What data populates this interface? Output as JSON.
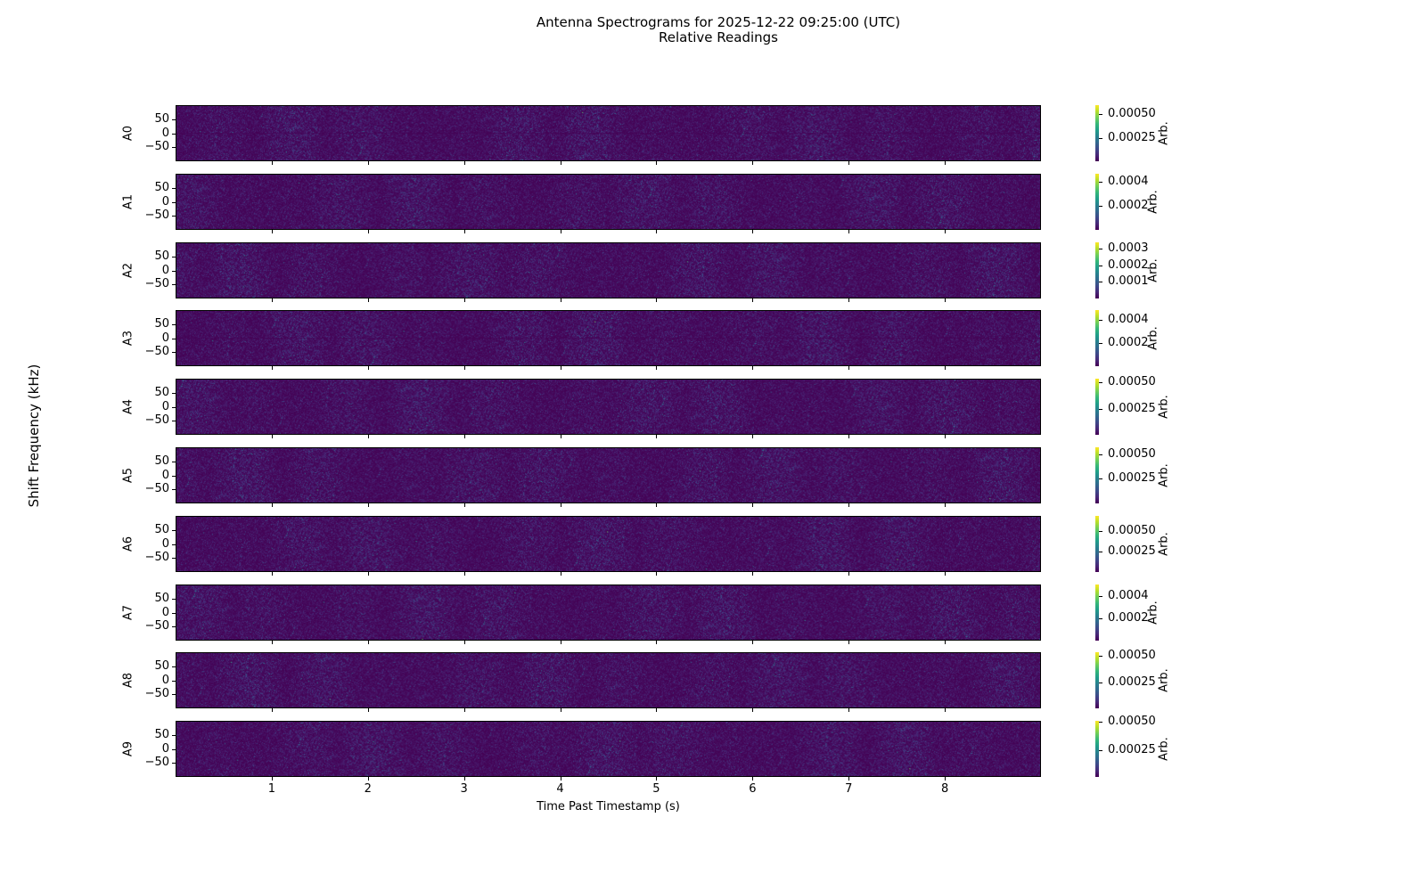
{
  "chart_data": {
    "type": "heatmap",
    "title": "Antenna Spectrograms for 2025-12-22 09:25:00 (UTC)",
    "subtitle": "Relative Readings",
    "xlabel": "Time Past Timestamp (s)",
    "ylabel": "Shift Frequency (kHz)",
    "xlim": [
      0,
      9
    ],
    "ylim": [
      -100,
      100
    ],
    "x_ticks": [
      1,
      2,
      3,
      4,
      5,
      6,
      7,
      8
    ],
    "y_ticks": [
      50,
      0,
      -50
    ],
    "y_tick_labels": [
      "50",
      "0",
      "−50"
    ],
    "colormap": "viridis",
    "colorbar_label": "Arb.",
    "panels": [
      {
        "name": "A0",
        "vmin": 1e-05,
        "vmax": 0.00059,
        "cb_ticks": [
          0.0005,
          0.00025
        ],
        "cb_labels": [
          "0.00050",
          "0.00025"
        ]
      },
      {
        "name": "A1",
        "vmin": 0.0,
        "vmax": 0.00047,
        "cb_ticks": [
          0.0004,
          0.0002
        ],
        "cb_labels": [
          "0.0004",
          "0.0002"
        ]
      },
      {
        "name": "A2",
        "vmin": 0.0,
        "vmax": 0.00034,
        "cb_ticks": [
          0.0003,
          0.0002,
          0.0001
        ],
        "cb_labels": [
          "0.0003",
          "0.0002",
          "0.0001"
        ]
      },
      {
        "name": "A3",
        "vmin": 0.0,
        "vmax": 0.00048,
        "cb_ticks": [
          0.0004,
          0.0002
        ],
        "cb_labels": [
          "0.0004",
          "0.0002"
        ]
      },
      {
        "name": "A4",
        "vmin": 1e-05,
        "vmax": 0.00053,
        "cb_ticks": [
          0.0005,
          0.00025
        ],
        "cb_labels": [
          "0.00050",
          "0.00025"
        ]
      },
      {
        "name": "A5",
        "vmin": 0.0,
        "vmax": 0.00057,
        "cb_ticks": [
          0.0005,
          0.00025
        ],
        "cb_labels": [
          "0.00050",
          "0.00025"
        ]
      },
      {
        "name": "A6",
        "vmin": 0.0,
        "vmax": 0.00068,
        "cb_ticks": [
          0.0005,
          0.00025
        ],
        "cb_labels": [
          "0.00050",
          "0.00025"
        ]
      },
      {
        "name": "A7",
        "vmin": 0.0,
        "vmax": 0.0005,
        "cb_ticks": [
          0.0004,
          0.0002
        ],
        "cb_labels": [
          "0.0004",
          "0.0002"
        ]
      },
      {
        "name": "A8",
        "vmin": 1e-05,
        "vmax": 0.00053,
        "cb_ticks": [
          0.0005,
          0.00025
        ],
        "cb_labels": [
          "0.00050",
          "0.00025"
        ]
      },
      {
        "name": "A9",
        "vmin": 1e-05,
        "vmax": 0.00051,
        "cb_ticks": [
          0.0005,
          0.00025
        ],
        "cb_labels": [
          "0.00050",
          "0.00025"
        ]
      }
    ]
  }
}
